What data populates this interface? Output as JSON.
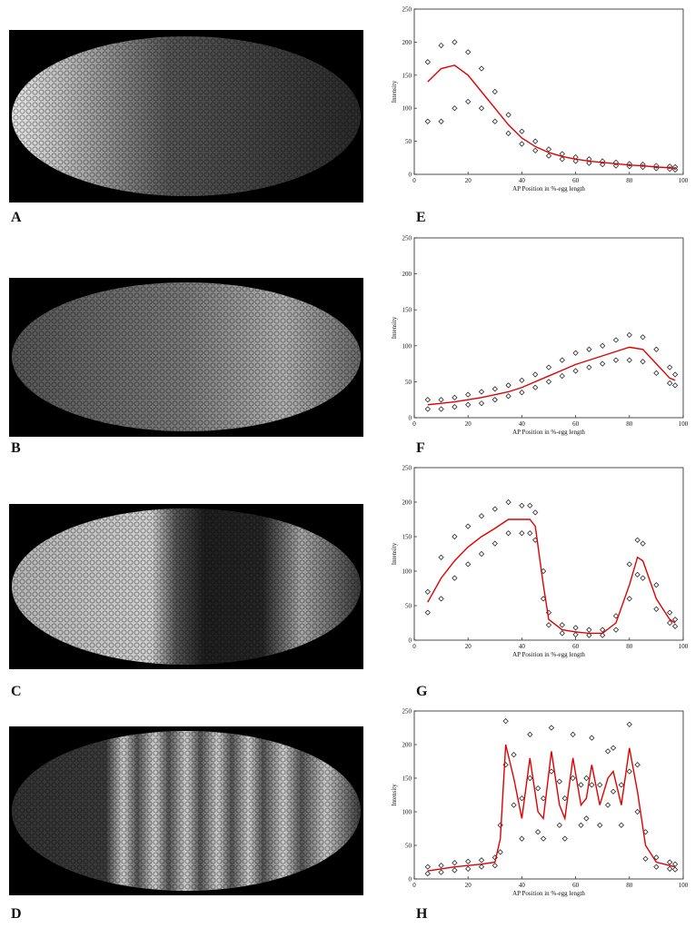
{
  "image_labels": [
    "A",
    "B",
    "C",
    "D"
  ],
  "chart_data": [
    {
      "type": "scatter",
      "label": "E",
      "x_label": "AP Position in %-egg length",
      "y_label": "Intensity",
      "xlim": [
        0,
        100
      ],
      "ylim": [
        0,
        250
      ],
      "xticks": [
        0,
        20,
        40,
        60,
        80,
        100
      ],
      "yticks": [
        0,
        50,
        100,
        150,
        200,
        250
      ],
      "x": [
        5,
        10,
        15,
        20,
        25,
        30,
        35,
        40,
        45,
        50,
        55,
        60,
        65,
        70,
        75,
        80,
        85,
        90,
        95,
        97
      ],
      "series": [
        {
          "style": "points",
          "color": "#111111",
          "values": [
            170,
            195,
            200,
            185,
            160,
            125,
            90,
            65,
            50,
            38,
            31,
            26,
            23,
            20,
            18,
            16,
            15,
            13,
            12,
            11
          ]
        },
        {
          "style": "points",
          "color": "#111111",
          "values": [
            80,
            80,
            100,
            110,
            100,
            80,
            62,
            46,
            36,
            28,
            23,
            20,
            17,
            15,
            13,
            12,
            11,
            9,
            8,
            7
          ]
        },
        {
          "style": "line",
          "color": "#e00000",
          "values": [
            140,
            160,
            165,
            150,
            125,
            100,
            75,
            55,
            42,
            33,
            27,
            23,
            20,
            18,
            16,
            14,
            13,
            11,
            10,
            9
          ]
        }
      ]
    },
    {
      "type": "scatter",
      "label": "F",
      "x_label": "AP Position in %-egg length",
      "y_label": "Intensity",
      "xlim": [
        0,
        100
      ],
      "ylim": [
        0,
        250
      ],
      "xticks": [
        0,
        20,
        40,
        60,
        80,
        100
      ],
      "yticks": [
        0,
        50,
        100,
        150,
        200,
        250
      ],
      "x": [
        5,
        10,
        15,
        20,
        25,
        30,
        35,
        40,
        45,
        50,
        55,
        60,
        65,
        70,
        75,
        80,
        85,
        90,
        95,
        97
      ],
      "series": [
        {
          "style": "points",
          "color": "#111111",
          "values": [
            25,
            25,
            28,
            32,
            36,
            40,
            45,
            52,
            60,
            70,
            80,
            90,
            95,
            100,
            108,
            115,
            112,
            95,
            70,
            60
          ]
        },
        {
          "style": "points",
          "color": "#111111",
          "values": [
            12,
            12,
            15,
            18,
            20,
            25,
            30,
            35,
            42,
            50,
            58,
            65,
            70,
            75,
            80,
            80,
            78,
            62,
            48,
            45
          ]
        },
        {
          "style": "line",
          "color": "#e00000",
          "values": [
            18,
            20,
            22,
            25,
            28,
            32,
            36,
            42,
            50,
            58,
            66,
            74,
            80,
            86,
            92,
            98,
            95,
            75,
            55,
            52
          ]
        }
      ]
    },
    {
      "type": "scatter",
      "label": "G",
      "x_label": "AP Position in %-egg length",
      "y_label": "Intensity",
      "xlim": [
        0,
        100
      ],
      "ylim": [
        0,
        250
      ],
      "xticks": [
        0,
        20,
        40,
        60,
        80,
        100
      ],
      "yticks": [
        0,
        50,
        100,
        150,
        200,
        250
      ],
      "x": [
        5,
        10,
        15,
        20,
        25,
        30,
        35,
        40,
        43,
        45,
        48,
        50,
        55,
        60,
        65,
        70,
        75,
        80,
        83,
        85,
        90,
        95,
        97
      ],
      "series": [
        {
          "style": "points",
          "color": "#111111",
          "values": [
            70,
            120,
            150,
            165,
            180,
            190,
            200,
            195,
            195,
            185,
            100,
            40,
            22,
            18,
            15,
            15,
            35,
            110,
            145,
            140,
            80,
            40,
            30
          ]
        },
        {
          "style": "points",
          "color": "#111111",
          "values": [
            40,
            60,
            90,
            110,
            125,
            140,
            155,
            155,
            155,
            145,
            60,
            22,
            10,
            8,
            7,
            7,
            15,
            60,
            95,
            90,
            45,
            25,
            20
          ]
        },
        {
          "style": "line",
          "color": "#e00000",
          "values": [
            55,
            90,
            115,
            135,
            150,
            162,
            175,
            175,
            175,
            165,
            80,
            30,
            15,
            12,
            10,
            10,
            25,
            80,
            120,
            115,
            60,
            30,
            25
          ]
        }
      ]
    },
    {
      "type": "scatter",
      "label": "H",
      "x_label": "AP Position in %-egg length",
      "y_label": "Intensity",
      "xlim": [
        0,
        100
      ],
      "ylim": [
        0,
        250
      ],
      "xticks": [
        0,
        20,
        40,
        60,
        80,
        100
      ],
      "yticks": [
        0,
        50,
        100,
        150,
        200,
        250
      ],
      "x": [
        5,
        10,
        15,
        20,
        25,
        30,
        32,
        34,
        37,
        40,
        43,
        46,
        48,
        51,
        54,
        56,
        59,
        62,
        64,
        66,
        69,
        72,
        74,
        77,
        80,
        83,
        86,
        90,
        95,
        97
      ],
      "series": [
        {
          "style": "points",
          "color": "#111111",
          "values": [
            18,
            20,
            24,
            26,
            28,
            32,
            80,
            235,
            185,
            120,
            215,
            135,
            120,
            225,
            145,
            120,
            215,
            140,
            150,
            210,
            140,
            190,
            195,
            140,
            230,
            170,
            70,
            32,
            25,
            22
          ]
        },
        {
          "style": "points",
          "color": "#111111",
          "values": [
            8,
            10,
            13,
            15,
            18,
            20,
            40,
            170,
            110,
            60,
            150,
            70,
            60,
            160,
            80,
            60,
            150,
            80,
            90,
            140,
            80,
            110,
            130,
            80,
            160,
            100,
            30,
            18,
            15,
            14
          ]
        },
        {
          "style": "line",
          "color": "#e00000",
          "values": [
            12,
            15,
            18,
            20,
            22,
            25,
            60,
            200,
            150,
            90,
            180,
            100,
            90,
            190,
            110,
            90,
            180,
            110,
            120,
            170,
            110,
            150,
            160,
            110,
            195,
            130,
            50,
            25,
            20,
            18
          ]
        }
      ]
    }
  ]
}
